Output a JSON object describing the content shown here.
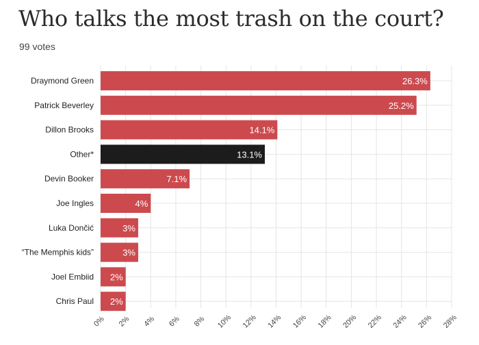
{
  "header": {
    "title": "Who talks the most trash on the court?",
    "subtitle": "99 votes"
  },
  "colors": {
    "bar": "#cc4a4e",
    "highlight_bar": "#1c1c1c",
    "grid": "#e4e4e4"
  },
  "chart_data": {
    "type": "bar",
    "orientation": "horizontal",
    "categories": [
      "Draymond Green",
      "Patrick Beverley",
      "Dillon Brooks",
      "Other*",
      "Devin Booker",
      "Joe Ingles",
      "Luka Dončić",
      "“The Memphis kids”",
      "Joel Embiid",
      "Chris Paul"
    ],
    "values": [
      26.3,
      25.2,
      14.1,
      13.1,
      7.1,
      4,
      3,
      3,
      2,
      2
    ],
    "value_labels": [
      "26.3%",
      "25.2%",
      "14.1%",
      "13.1%",
      "7.1%",
      "4%",
      "3%",
      "3%",
      "2%",
      "2%"
    ],
    "highlight": [
      "Other*"
    ],
    "title": "Who talks the most trash on the court?",
    "xlim": [
      0,
      28
    ],
    "xticks": [
      0,
      2,
      4,
      6,
      8,
      10,
      12,
      14,
      16,
      18,
      20,
      22,
      24,
      26,
      28
    ],
    "xtick_labels": [
      "0%",
      "2%",
      "4%",
      "6%",
      "8%",
      "10%",
      "12%",
      "14%",
      "16%",
      "18%",
      "20%",
      "22%",
      "24%",
      "26%",
      "28%"
    ],
    "grid": true,
    "legend": false
  }
}
